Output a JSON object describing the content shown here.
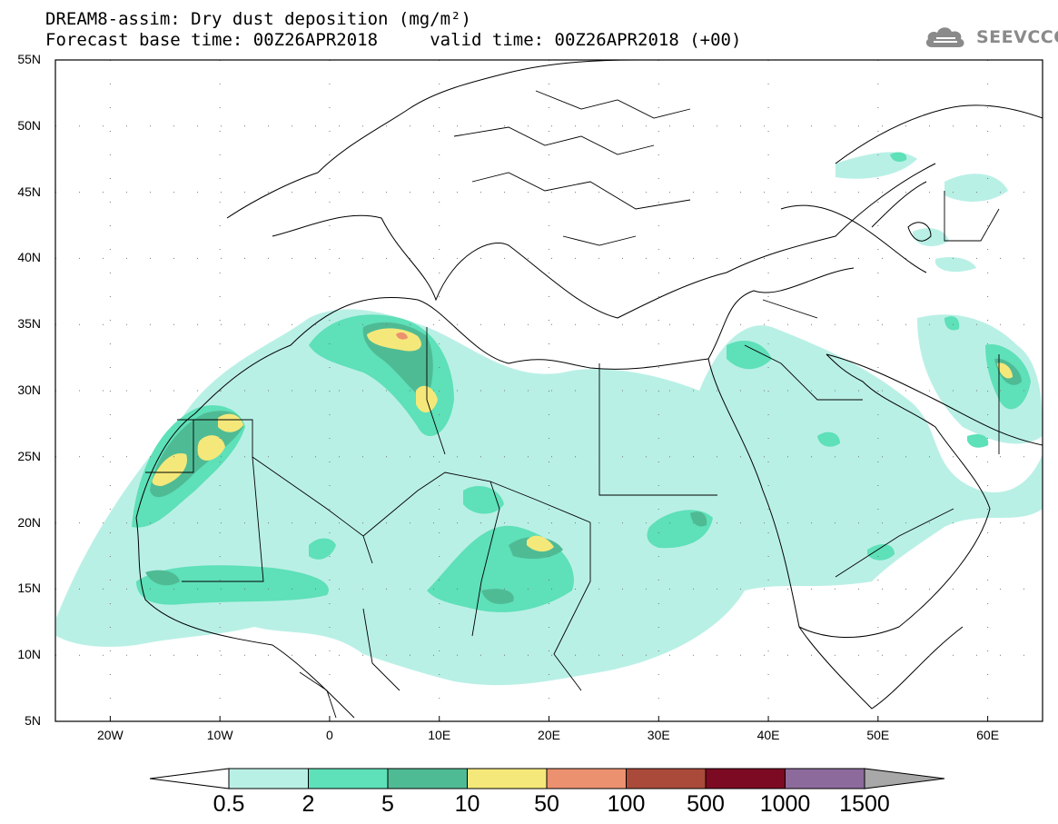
{
  "header": {
    "title_line1": "DREAM8-assim: Dry dust deposition (mg/m²)",
    "title_line2": "Forecast base time: 00Z26APR2018     valid time: 00Z26APR2018 (+00)"
  },
  "logo": {
    "text": "SEEVCCC",
    "icon": "cloud-icon"
  },
  "map": {
    "lat_range": [
      5,
      55
    ],
    "lon_range": [
      -25,
      65
    ],
    "lat_labels": [
      "55N",
      "50N",
      "45N",
      "40N",
      "35N",
      "30N",
      "25N",
      "20N",
      "15N",
      "10N",
      "5N"
    ],
    "lon_labels": [
      "20W",
      "10W",
      "0",
      "10E",
      "20E",
      "30E",
      "40E",
      "50E",
      "60E"
    ],
    "grid": "dotted"
  },
  "legend": {
    "labels": [
      "0.5",
      "2",
      "5",
      "10",
      "50",
      "100",
      "500",
      "1000",
      "1500"
    ],
    "colors": [
      "#b9f0e6",
      "#5ee0b8",
      "#4fbb95",
      "#f5e87a",
      "#ec9170",
      "#aa4a3a",
      "#7b0a22",
      "#8d6a9c",
      "#a8a8a8"
    ],
    "under_color": "#ffffff",
    "over_color": "#a8a8a8"
  }
}
